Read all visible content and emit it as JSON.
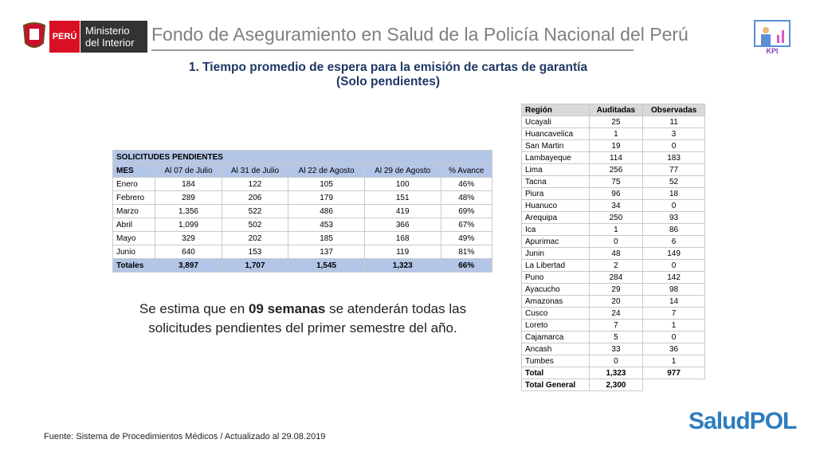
{
  "header": {
    "badge": "PERÚ",
    "ministry": [
      "Ministerio",
      "del Interior"
    ],
    "title": "Fondo de Aseguramiento en Salud de la Policía Nacional del Perú",
    "kpi": "KPI"
  },
  "slide_title": [
    "1. Tiempo promedio de espera para la emisión de cartas de garantía",
    "(Solo pendientes)"
  ],
  "pending_table": {
    "caption": "SOLICITUDES PENDIENTES",
    "columns": [
      "MES",
      "Al 07 de Julio",
      "Al 31 de Julio",
      "Al 22 de Agosto",
      "Al 29 de Agosto",
      "% Avance"
    ],
    "rows": [
      [
        "Enero",
        "184",
        "122",
        "105",
        "100",
        "46%"
      ],
      [
        "Febrero",
        "289",
        "206",
        "179",
        "151",
        "48%"
      ],
      [
        "Marzo",
        "1,356",
        "522",
        "486",
        "419",
        "69%"
      ],
      [
        "Abril",
        "1,099",
        "502",
        "453",
        "366",
        "67%"
      ],
      [
        "Mayo",
        "329",
        "202",
        "185",
        "168",
        "49%"
      ],
      [
        "Junio",
        "640",
        "153",
        "137",
        "119",
        "81%"
      ]
    ],
    "totals": [
      "Totales",
      "3,897",
      "1,707",
      "1,545",
      "1,323",
      "66%"
    ]
  },
  "statement": {
    "before": "Se estima que en ",
    "bold": "09 semanas",
    "after": " se atenderán todas las solicitudes pendientes del primer semestre del año."
  },
  "region_table": {
    "columns": [
      "Región",
      "Auditadas",
      "Observadas"
    ],
    "rows": [
      [
        "Ucayali",
        "25",
        "11"
      ],
      [
        "Huancavelica",
        "1",
        "3"
      ],
      [
        "San Martin",
        "19",
        "0"
      ],
      [
        "Lambayeque",
        "114",
        "183"
      ],
      [
        "Lima",
        "256",
        "77"
      ],
      [
        "Tacna",
        "75",
        "52"
      ],
      [
        "Piura",
        "96",
        "18"
      ],
      [
        "Huanuco",
        "34",
        "0"
      ],
      [
        "Arequipa",
        "250",
        "93"
      ],
      [
        "Ica",
        "1",
        "86"
      ],
      [
        "Apurimac",
        "0",
        "6"
      ],
      [
        "Junin",
        "48",
        "149"
      ],
      [
        "La Libertad",
        "2",
        "0"
      ],
      [
        "Puno",
        "284",
        "142"
      ],
      [
        "Ayacucho",
        "29",
        "98"
      ],
      [
        "Amazonas",
        "20",
        "14"
      ],
      [
        "Cusco",
        "24",
        "7"
      ],
      [
        "Loreto",
        "7",
        "1"
      ],
      [
        "Cajamarca",
        "5",
        "0"
      ],
      [
        "Ancash",
        "33",
        "36"
      ],
      [
        "Tumbes",
        "0",
        "1"
      ]
    ],
    "total": [
      "Total",
      "1,323",
      "977"
    ],
    "total_general": [
      "Total General",
      "2,300"
    ]
  },
  "footer": {
    "source": "Fuente: Sistema de Procedimientos Médicos / Actualizado al 29.08.2019",
    "logo": "SaludPOL"
  }
}
